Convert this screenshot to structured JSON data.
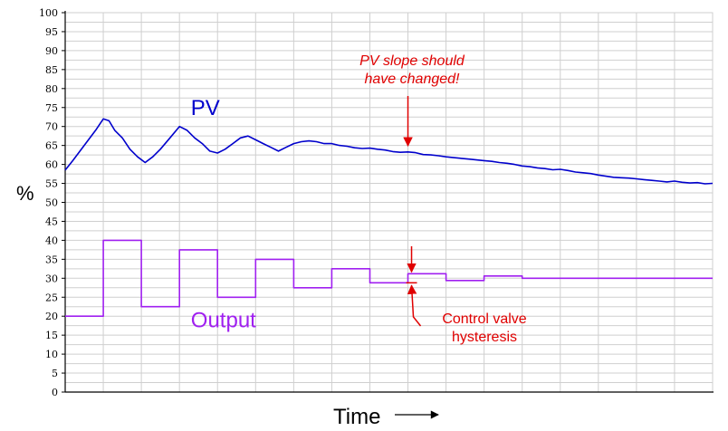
{
  "chart_data": {
    "type": "line",
    "xlabel": "Time",
    "ylabel": "%",
    "ylim": [
      0,
      100
    ],
    "yticks": [
      0,
      5,
      10,
      15,
      20,
      25,
      30,
      35,
      40,
      45,
      50,
      55,
      60,
      65,
      70,
      75,
      80,
      85,
      90,
      95,
      100
    ],
    "xlim": [
      0,
      17
    ],
    "grid": true,
    "series": [
      {
        "name": "PV",
        "color": "#0000cc",
        "label_pos": [
          3.3,
          75
        ],
        "x": [
          0,
          0.2,
          0.5,
          0.8,
          1.0,
          1.15,
          1.3,
          1.5,
          1.7,
          1.9,
          2.1,
          2.3,
          2.5,
          2.75,
          3.0,
          3.2,
          3.4,
          3.6,
          3.8,
          4.0,
          4.2,
          4.4,
          4.6,
          4.8,
          5.0,
          5.2,
          5.4,
          5.6,
          5.8,
          6.0,
          6.2,
          6.4,
          6.6,
          6.8,
          7.0,
          7.2,
          7.4,
          7.6,
          7.8,
          8.0,
          8.2,
          8.4,
          8.6,
          8.8,
          9.0,
          9.2,
          9.4,
          9.6,
          9.8,
          10.0,
          10.2,
          10.4,
          10.6,
          10.8,
          11.0,
          11.2,
          11.4,
          11.6,
          11.8,
          12.0,
          12.2,
          12.4,
          12.6,
          12.8,
          13.0,
          13.2,
          13.4,
          13.6,
          13.8,
          14.0,
          14.2,
          14.4,
          14.6,
          14.8,
          15.0,
          15.2,
          15.4,
          15.6,
          15.8,
          16.0,
          16.2,
          16.4,
          16.6,
          16.8,
          17.0
        ],
        "y": [
          58.5,
          61,
          65,
          69,
          72,
          71.5,
          69,
          67,
          64,
          62,
          60.5,
          62,
          64,
          67,
          70,
          69,
          67,
          65.5,
          63.5,
          63,
          64,
          65.5,
          67,
          67.5,
          66.5,
          65.5,
          64.5,
          63.5,
          64.5,
          65.5,
          66,
          66.2,
          66,
          65.5,
          65.5,
          65,
          64.8,
          64.4,
          64.2,
          64.3,
          64,
          63.8,
          63.4,
          63.2,
          63.3,
          63.1,
          62.6,
          62.5,
          62.3,
          62,
          61.8,
          61.6,
          61.4,
          61.2,
          61,
          60.8,
          60.5,
          60.3,
          60,
          59.6,
          59.4,
          59.1,
          58.9,
          58.6,
          58.7,
          58.4,
          58,
          57.8,
          57.6,
          57.2,
          56.9,
          56.6,
          56.5,
          56.4,
          56.2,
          56,
          55.8,
          55.6,
          55.4,
          55.6,
          55.3,
          55.1,
          55.2,
          54.9,
          55
        ]
      },
      {
        "name": "Output",
        "color": "#a020f0",
        "step": true,
        "label_pos": [
          3.3,
          19
        ],
        "x": [
          0,
          1,
          2,
          3,
          4,
          5,
          6,
          7,
          8,
          9,
          10,
          11,
          12,
          17
        ],
        "y": [
          20,
          40,
          22.5,
          37.5,
          25,
          35,
          27.5,
          32.5,
          28.8,
          31.2,
          29.4,
          30.6,
          30,
          30
        ]
      }
    ],
    "annotations": [
      {
        "text": [
          "PV slope should",
          "have changed!"
        ],
        "style": "italic",
        "color": "#e00000",
        "arrow_to": [
          9,
          64.2
        ]
      },
      {
        "text": [
          "Control valve",
          "hysteresis"
        ],
        "style": "normal",
        "color": "#e00000",
        "bracket": [
          9,
          28.8,
          31.2
        ]
      }
    ]
  }
}
